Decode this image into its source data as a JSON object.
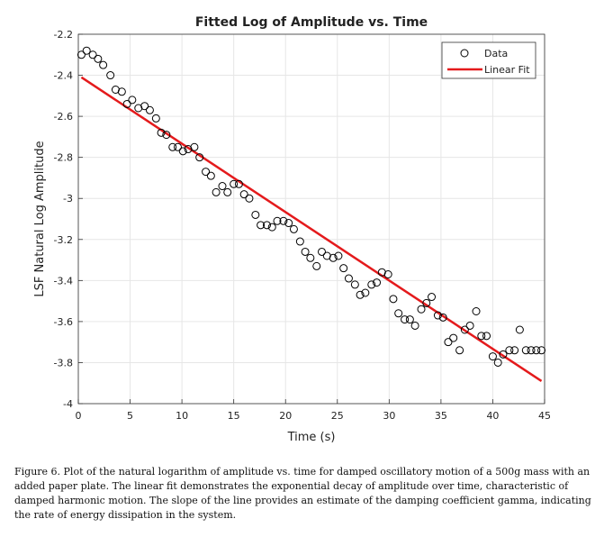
{
  "chart_data": {
    "type": "scatter",
    "title": "Fitted Log of Amplitude vs. Time",
    "xlabel": "Time (s)",
    "ylabel": "LSF Natural Log Amplitude",
    "xlim": [
      0,
      45
    ],
    "ylim": [
      -4,
      -2.2
    ],
    "xticks": [
      0,
      5,
      10,
      15,
      20,
      25,
      30,
      35,
      40,
      45
    ],
    "yticks": [
      -2.2,
      -2.4,
      -2.6,
      -2.8,
      -3,
      -3.2,
      -3.4,
      -3.6,
      -3.8,
      -4
    ],
    "xtick_labels": [
      "0",
      "5",
      "10",
      "15",
      "20",
      "25",
      "30",
      "35",
      "40",
      "45"
    ],
    "ytick_labels": [
      "-2.2",
      "-2.4",
      "-2.6",
      "-2.8",
      "-3",
      "-3.2",
      "-3.4",
      "-3.6",
      "-3.8",
      "-4"
    ],
    "grid": true,
    "legend_position": "top-right",
    "series": [
      {
        "name": "Data",
        "kind": "markers",
        "color": "#000000",
        "x": [
          0.3,
          0.8,
          1.4,
          1.9,
          2.4,
          3.1,
          3.6,
          4.2,
          4.7,
          5.2,
          5.8,
          6.4,
          6.9,
          7.5,
          8.0,
          8.5,
          9.1,
          9.6,
          10.1,
          10.6,
          11.2,
          11.7,
          12.3,
          12.8,
          13.3,
          13.9,
          14.4,
          15.0,
          15.5,
          16.0,
          16.5,
          17.1,
          17.6,
          18.2,
          18.7,
          19.2,
          19.8,
          20.3,
          20.8,
          21.4,
          21.9,
          22.4,
          23.0,
          23.5,
          24.0,
          24.6,
          25.1,
          25.6,
          26.1,
          26.7,
          27.2,
          27.7,
          28.3,
          28.8,
          29.3,
          29.9,
          30.4,
          30.9,
          31.5,
          32.0,
          32.5,
          33.1,
          33.6,
          34.1,
          34.7,
          35.2,
          35.7,
          36.2,
          36.8,
          37.3,
          37.8,
          38.4,
          38.9,
          39.4,
          40.0,
          40.5,
          41.0,
          41.6,
          42.1,
          42.6,
          43.2,
          43.7,
          44.2,
          44.7
        ],
        "y": [
          -2.3,
          -2.28,
          -2.3,
          -2.32,
          -2.35,
          -2.4,
          -2.47,
          -2.48,
          -2.54,
          -2.52,
          -2.56,
          -2.55,
          -2.57,
          -2.61,
          -2.68,
          -2.69,
          -2.75,
          -2.75,
          -2.77,
          -2.76,
          -2.75,
          -2.8,
          -2.87,
          -2.89,
          -2.97,
          -2.94,
          -2.97,
          -2.93,
          -2.93,
          -2.98,
          -3.0,
          -3.08,
          -3.13,
          -3.13,
          -3.14,
          -3.11,
          -3.11,
          -3.12,
          -3.15,
          -3.21,
          -3.26,
          -3.29,
          -3.33,
          -3.26,
          -3.28,
          -3.29,
          -3.28,
          -3.34,
          -3.39,
          -3.42,
          -3.47,
          -3.46,
          -3.42,
          -3.41,
          -3.36,
          -3.37,
          -3.49,
          -3.56,
          -3.59,
          -3.59,
          -3.62,
          -3.54,
          -3.51,
          -3.48,
          -3.57,
          -3.58,
          -3.7,
          -3.68,
          -3.74,
          -3.64,
          -3.62,
          -3.55,
          -3.67,
          -3.67,
          -3.77,
          -3.8,
          -3.76,
          -3.74,
          -3.74,
          -3.64,
          -3.74,
          -3.74,
          -3.74,
          -3.74
        ]
      },
      {
        "name": "Linear Fit",
        "kind": "line",
        "color": "#e41a1c",
        "x": [
          0.3,
          44.7
        ],
        "y": [
          -2.41,
          -3.89
        ]
      }
    ]
  },
  "caption": "Figure 6. Plot of the natural logarithm of amplitude vs. time for damped oscillatory motion of a 500g mass with an added paper plate. The linear fit demonstrates the exponential decay of amplitude over time, characteristic of damped harmonic motion. The slope of the line provides an estimate of the damping coefficient gamma, indicating the rate of energy dissipation in the system."
}
